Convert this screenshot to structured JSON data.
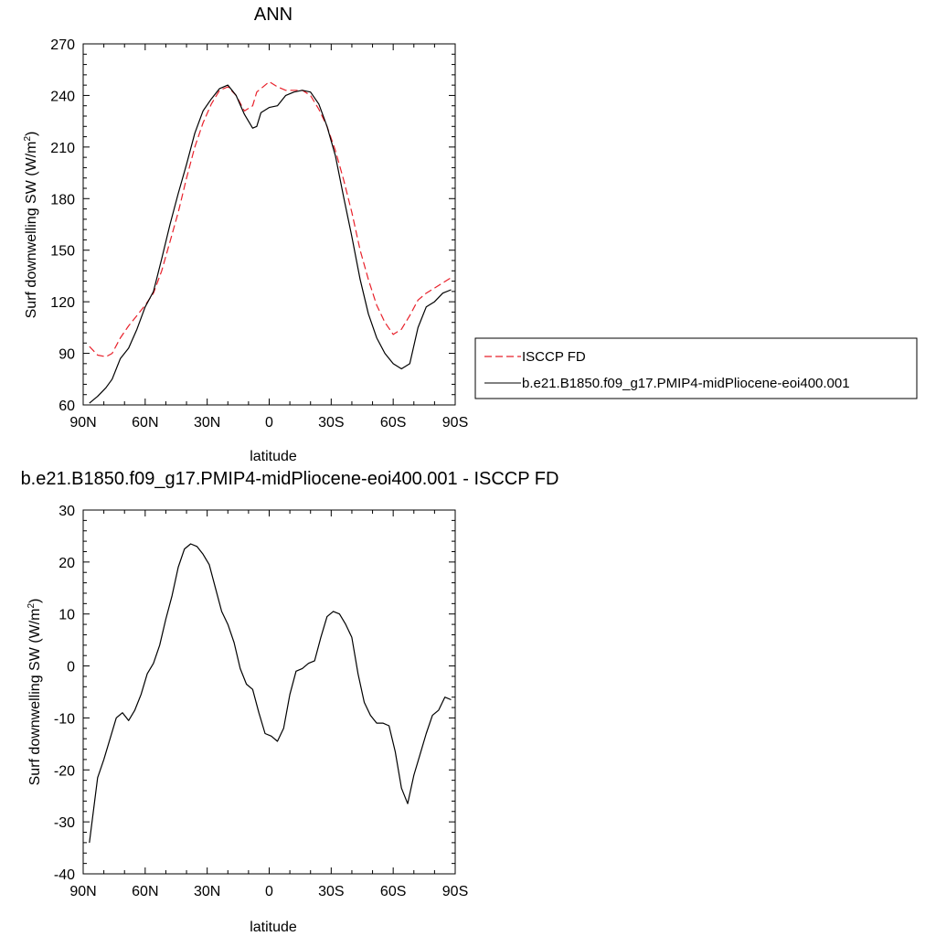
{
  "chart_data": [
    {
      "type": "line",
      "title": "ANN",
      "xlabel": "latitude",
      "ylabel": "Surf downwelling SW (W/m²)",
      "ylabel_main": "Surf downwelling SW (W/m",
      "ylabel_sup": "2",
      "ylabel_close": ")",
      "xlim": [
        90,
        -90
      ],
      "ylim": [
        60,
        270
      ],
      "xticks": [
        90,
        60,
        30,
        0,
        -30,
        -60,
        -90
      ],
      "xtick_labels": [
        "90N",
        "60N",
        "30N",
        "0",
        "30S",
        "60S",
        "90S"
      ],
      "yticks": [
        60,
        90,
        120,
        150,
        180,
        210,
        240,
        270
      ],
      "ytick_labels": [
        "60",
        "90",
        "120",
        "150",
        "180",
        "210",
        "240",
        "270"
      ],
      "legend_position": "right",
      "series": [
        {
          "name": "ISCCP FD",
          "color": "#e8202a",
          "dash": "dashed",
          "x": [
            87,
            83,
            79,
            76,
            72,
            68,
            64,
            60,
            56,
            52,
            48,
            44,
            40,
            36,
            32,
            28,
            24,
            20,
            16,
            12,
            8,
            6,
            4,
            0,
            -4,
            -8,
            -12,
            -16,
            -20,
            -24,
            -28,
            -32,
            -36,
            -40,
            -44,
            -48,
            -52,
            -56,
            -60,
            -64,
            -68,
            -72,
            -76,
            -80,
            -84,
            -88
          ],
          "y": [
            94,
            89,
            88,
            90,
            99,
            106,
            112,
            118,
            125,
            138,
            155,
            172,
            192,
            210,
            224,
            235,
            243,
            245,
            240,
            231,
            234,
            242,
            244,
            248,
            245,
            243,
            243,
            243,
            240,
            232,
            222,
            208,
            191,
            172,
            150,
            133,
            118,
            108,
            101,
            104,
            112,
            121,
            125,
            128,
            131,
            134
          ]
        },
        {
          "name": "b.e21.B1850.f09_g17.PMIP4-midPliocene-eoi400.001",
          "color": "#000000",
          "dash": "solid",
          "x": [
            87,
            83,
            79,
            76,
            72,
            68,
            64,
            60,
            56,
            52,
            48,
            44,
            40,
            36,
            32,
            28,
            24,
            20,
            16,
            12,
            8,
            6,
            4,
            0,
            -4,
            -8,
            -12,
            -16,
            -20,
            -24,
            -28,
            -32,
            -36,
            -40,
            -44,
            -48,
            -52,
            -56,
            -60,
            -64,
            -68,
            -72,
            -76,
            -80,
            -84,
            -88
          ],
          "y": [
            61,
            65,
            70,
            75,
            87,
            93,
            104,
            117,
            126,
            145,
            165,
            183,
            200,
            218,
            231,
            238,
            244,
            246,
            240,
            229,
            221,
            222,
            230,
            233,
            234,
            240,
            242,
            243,
            242,
            235,
            222,
            205,
            181,
            158,
            133,
            113,
            99,
            90,
            84,
            81,
            84,
            105,
            117,
            120,
            125,
            127
          ]
        }
      ]
    },
    {
      "type": "line",
      "title": "b.e21.B1850.f09_g17.PMIP4-midPliocene-eoi400.001 - ISCCP FD",
      "xlabel": "latitude",
      "ylabel": "Surf downwelling SW (W/m²)",
      "ylabel_main": "Surf downwelling SW (W/m",
      "ylabel_sup": "2",
      "ylabel_close": ")",
      "xlim": [
        90,
        -90
      ],
      "ylim": [
        -40,
        30
      ],
      "xticks": [
        90,
        60,
        30,
        0,
        -30,
        -60,
        -90
      ],
      "xtick_labels": [
        "90N",
        "60N",
        "30N",
        "0",
        "30S",
        "60S",
        "90S"
      ],
      "yticks": [
        -40,
        -30,
        -20,
        -10,
        0,
        10,
        20,
        30
      ],
      "ytick_labels": [
        "-40",
        "-30",
        "-20",
        "-10",
        "0",
        "10",
        "20",
        "30"
      ],
      "series": [
        {
          "color": "#000000",
          "dash": "solid",
          "x": [
            87,
            83,
            80,
            77,
            74,
            71,
            68,
            65,
            62,
            59,
            56,
            53,
            50,
            47,
            44,
            41,
            38,
            35,
            32,
            29,
            26,
            23,
            20,
            17,
            14,
            11,
            8,
            5,
            2,
            -1,
            -4,
            -7,
            -10,
            -13,
            -16,
            -19,
            -22,
            -25,
            -28,
            -31,
            -34,
            -37,
            -40,
            -43,
            -46,
            -49,
            -52,
            -55,
            -58,
            -61,
            -64,
            -67,
            -70,
            -73,
            -76,
            -79,
            -82,
            -85,
            -88
          ],
          "y": [
            -34,
            -21.5,
            -18,
            -14,
            -10,
            -9,
            -10.5,
            -8.5,
            -5.5,
            -1.5,
            0.5,
            4,
            9,
            13.5,
            19,
            22.5,
            23.5,
            23,
            21.5,
            19.5,
            15,
            10.5,
            8,
            4.5,
            -0.5,
            -3.5,
            -4.5,
            -9,
            -13,
            -13.5,
            -14.5,
            -12,
            -5.5,
            -1,
            -0.5,
            0.5,
            1,
            5.5,
            9.5,
            10.5,
            10,
            8,
            5.5,
            -1.5,
            -7,
            -9.5,
            -11,
            -11,
            -11.5,
            -16.5,
            -23.5,
            -26.5,
            -21,
            -17,
            -13,
            -9.5,
            -8.5,
            -6,
            -6.5
          ]
        }
      ]
    }
  ]
}
